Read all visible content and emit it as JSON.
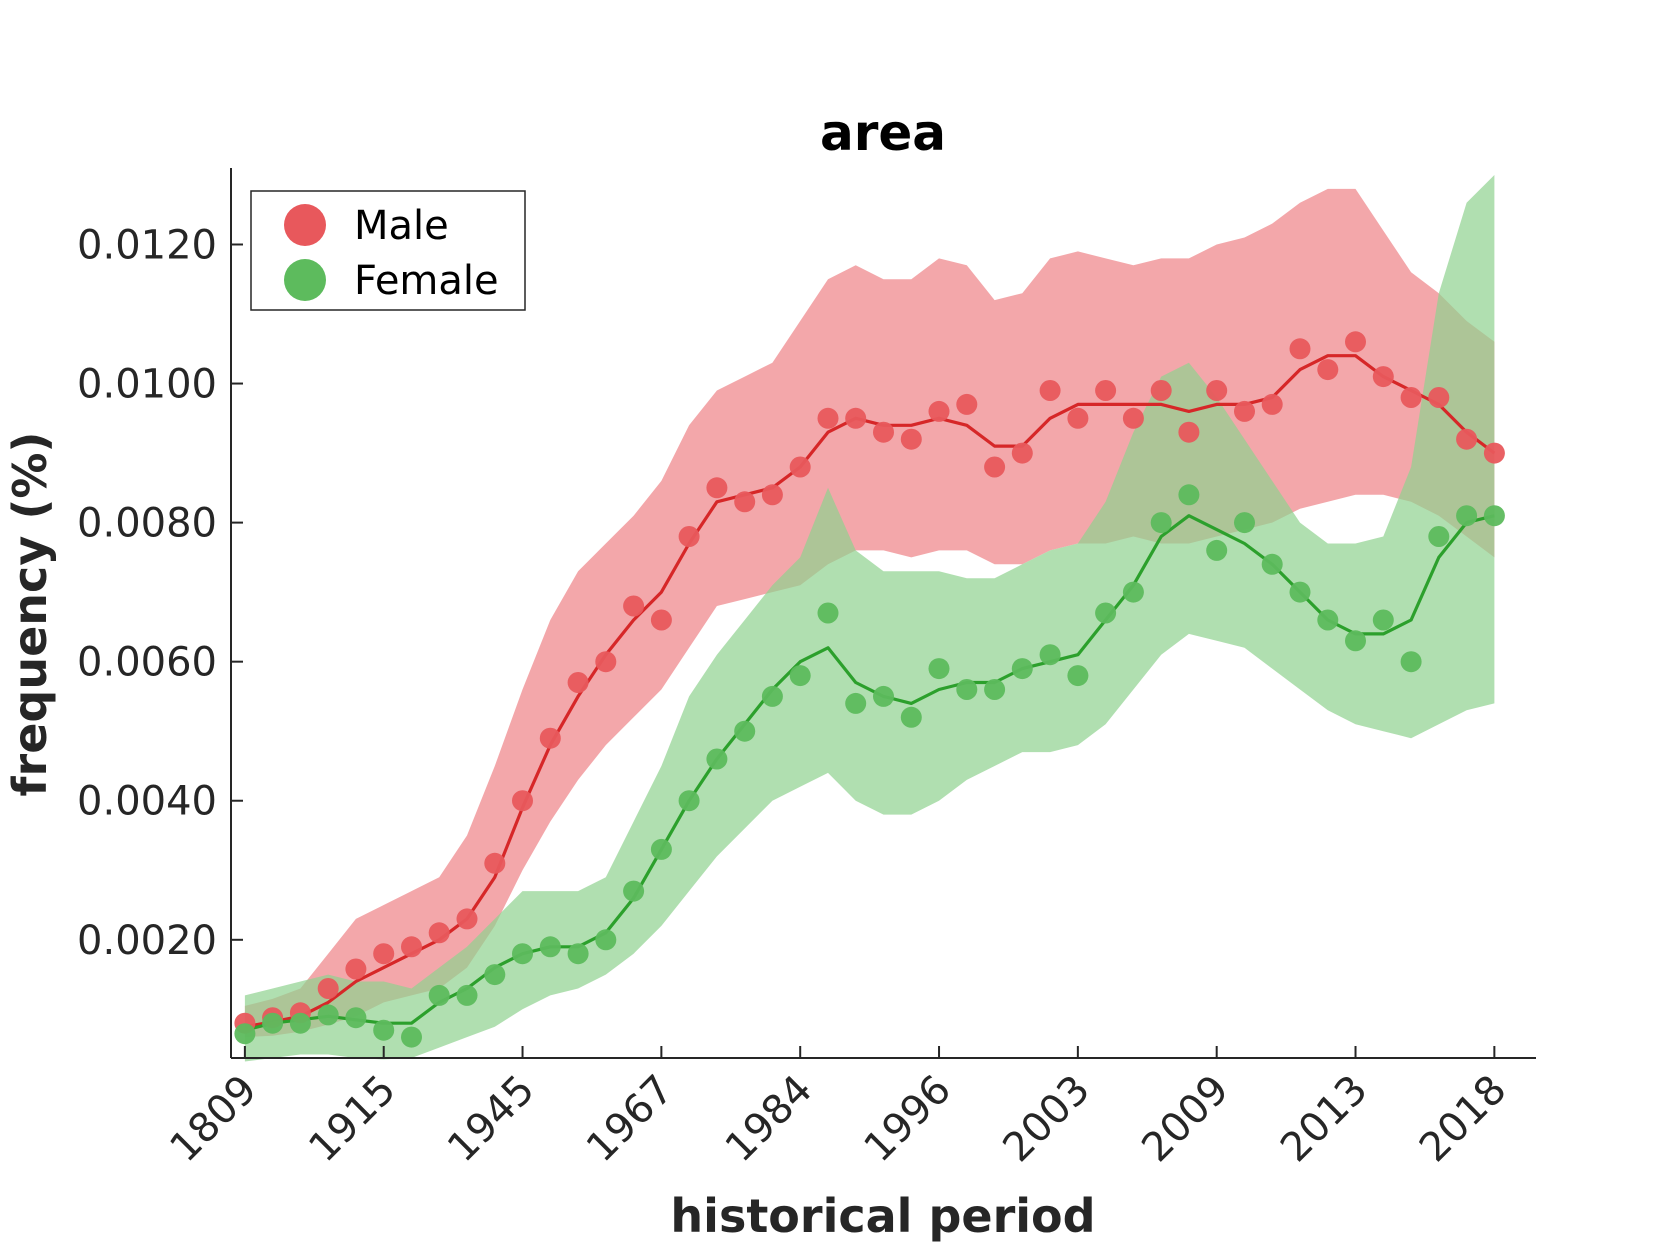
{
  "chart_data": {
    "type": "line",
    "title": "area",
    "xlabel": "historical period",
    "ylabel": "frequency (%)",
    "x_tick_labels": [
      "1809",
      "1915",
      "1945",
      "1967",
      "1984",
      "1996",
      "2003",
      "2009",
      "2013",
      "2018"
    ],
    "y_ticks": [
      0.002,
      0.004,
      0.006,
      0.008,
      0.01,
      0.012
    ],
    "y_tick_labels": [
      "0.0020",
      "0.0040",
      "0.0060",
      "0.0080",
      "0.0100",
      "0.0120"
    ],
    "ylim": [
      0.0003,
      0.0131
    ],
    "x_index_range": [
      -0.5,
      46.5
    ],
    "grid": false,
    "legend_position": "top-left",
    "series": [
      {
        "name": "Male",
        "color": "#d62728",
        "marker_color": "#e8585c",
        "band_color": "#ef8a8d",
        "points": [
          0.0008,
          0.00088,
          0.00095,
          0.0013,
          0.00158,
          0.0018,
          0.0019,
          0.0021,
          0.0023,
          0.0031,
          0.004,
          0.0049,
          0.0057,
          0.006,
          0.0068,
          0.0066,
          0.0078,
          0.0085,
          0.0083,
          0.0084,
          0.0088,
          0.0095,
          0.0095,
          0.0093,
          0.0092,
          0.0096,
          0.0097,
          0.0088,
          0.009,
          0.0099,
          0.0095,
          0.0099,
          0.0095,
          0.0099,
          0.0093,
          0.0099,
          0.0096,
          0.0097,
          0.0105,
          0.0102,
          0.0106,
          0.0101,
          0.0098,
          0.0098,
          0.0092,
          0.009
        ],
        "line": [
          0.00075,
          0.00082,
          0.0009,
          0.0011,
          0.0014,
          0.0016,
          0.0018,
          0.002,
          0.0023,
          0.0029,
          0.0039,
          0.0048,
          0.0055,
          0.0061,
          0.0066,
          0.007,
          0.0077,
          0.0083,
          0.0084,
          0.0085,
          0.0088,
          0.0093,
          0.0095,
          0.0094,
          0.0094,
          0.0095,
          0.0094,
          0.0091,
          0.0091,
          0.0095,
          0.0097,
          0.0097,
          0.0097,
          0.0097,
          0.0096,
          0.0097,
          0.0097,
          0.0098,
          0.0102,
          0.0104,
          0.0104,
          0.0101,
          0.0099,
          0.0097,
          0.0093,
          0.009
        ],
        "band_upper": [
          0.00105,
          0.00115,
          0.0013,
          0.0018,
          0.0023,
          0.0025,
          0.0027,
          0.0029,
          0.0035,
          0.0045,
          0.0056,
          0.0066,
          0.0073,
          0.0077,
          0.0081,
          0.0086,
          0.0094,
          0.0099,
          0.0101,
          0.0103,
          0.0109,
          0.0115,
          0.0117,
          0.0115,
          0.0115,
          0.0118,
          0.0117,
          0.0112,
          0.0113,
          0.0118,
          0.0119,
          0.0118,
          0.0117,
          0.0118,
          0.0118,
          0.012,
          0.0121,
          0.0123,
          0.0126,
          0.0128,
          0.0128,
          0.0122,
          0.0116,
          0.0113,
          0.0109,
          0.0106
        ],
        "band_lower": [
          0.0006,
          0.00062,
          0.00068,
          0.00078,
          0.0009,
          0.0011,
          0.0012,
          0.0013,
          0.0016,
          0.0022,
          0.003,
          0.0037,
          0.0043,
          0.0048,
          0.0052,
          0.0056,
          0.0062,
          0.0068,
          0.0069,
          0.007,
          0.0071,
          0.0074,
          0.0076,
          0.0076,
          0.0075,
          0.0076,
          0.0076,
          0.0074,
          0.0074,
          0.0076,
          0.0077,
          0.0077,
          0.0078,
          0.0077,
          0.0077,
          0.0078,
          0.0079,
          0.008,
          0.0082,
          0.0083,
          0.0084,
          0.0084,
          0.0083,
          0.0081,
          0.0078,
          0.0075
        ]
      },
      {
        "name": "Female",
        "color": "#2ca02c",
        "marker_color": "#5dbb5d",
        "band_color": "#8fd18f",
        "points": [
          0.00065,
          0.0008,
          0.0008,
          0.00092,
          0.00088,
          0.0007,
          0.0006,
          0.0012,
          0.0012,
          0.0015,
          0.0018,
          0.0019,
          0.0018,
          0.002,
          0.0027,
          0.0033,
          0.004,
          0.0046,
          0.005,
          0.0055,
          0.0058,
          0.0067,
          0.0054,
          0.0055,
          0.0052,
          0.0059,
          0.0056,
          0.0056,
          0.0059,
          0.0061,
          0.0058,
          0.0067,
          0.007,
          0.008,
          0.0084,
          0.0076,
          0.008,
          0.0074,
          0.007,
          0.0066,
          0.0063,
          0.0066,
          0.006,
          0.0078,
          0.0081,
          0.0081
        ],
        "line": [
          0.0007,
          0.0008,
          0.00085,
          0.0009,
          0.00085,
          0.0008,
          0.0008,
          0.0011,
          0.0013,
          0.0016,
          0.0018,
          0.0019,
          0.0019,
          0.0021,
          0.0026,
          0.0033,
          0.004,
          0.0046,
          0.0051,
          0.0056,
          0.006,
          0.0062,
          0.0057,
          0.0055,
          0.0054,
          0.0056,
          0.0057,
          0.0057,
          0.0059,
          0.006,
          0.0061,
          0.0066,
          0.0071,
          0.0078,
          0.0081,
          0.0079,
          0.0077,
          0.0074,
          0.007,
          0.0066,
          0.0064,
          0.0064,
          0.0066,
          0.0075,
          0.008,
          0.0081
        ],
        "band_upper": [
          0.0012,
          0.0013,
          0.0014,
          0.0015,
          0.0014,
          0.0014,
          0.0013,
          0.0016,
          0.0019,
          0.0023,
          0.0027,
          0.0027,
          0.0027,
          0.0029,
          0.0037,
          0.0045,
          0.0055,
          0.0061,
          0.0066,
          0.0071,
          0.0075,
          0.0085,
          0.0076,
          0.0073,
          0.0073,
          0.0073,
          0.0072,
          0.0072,
          0.0074,
          0.0076,
          0.0077,
          0.0083,
          0.0093,
          0.0101,
          0.0103,
          0.0098,
          0.0092,
          0.0086,
          0.008,
          0.0077,
          0.0077,
          0.0078,
          0.0088,
          0.0113,
          0.0126,
          0.013
        ],
        "band_lower": [
          0.00025,
          0.0003,
          0.00035,
          0.00035,
          0.0003,
          0.00028,
          0.0003,
          0.00045,
          0.0006,
          0.00075,
          0.001,
          0.0012,
          0.0013,
          0.0015,
          0.0018,
          0.0022,
          0.0027,
          0.0032,
          0.0036,
          0.004,
          0.0042,
          0.0044,
          0.004,
          0.0038,
          0.0038,
          0.004,
          0.0043,
          0.0045,
          0.0047,
          0.0047,
          0.0048,
          0.0051,
          0.0056,
          0.0061,
          0.0064,
          0.0063,
          0.0062,
          0.0059,
          0.0056,
          0.0053,
          0.0051,
          0.005,
          0.0049,
          0.0051,
          0.0053,
          0.0054
        ]
      }
    ]
  }
}
